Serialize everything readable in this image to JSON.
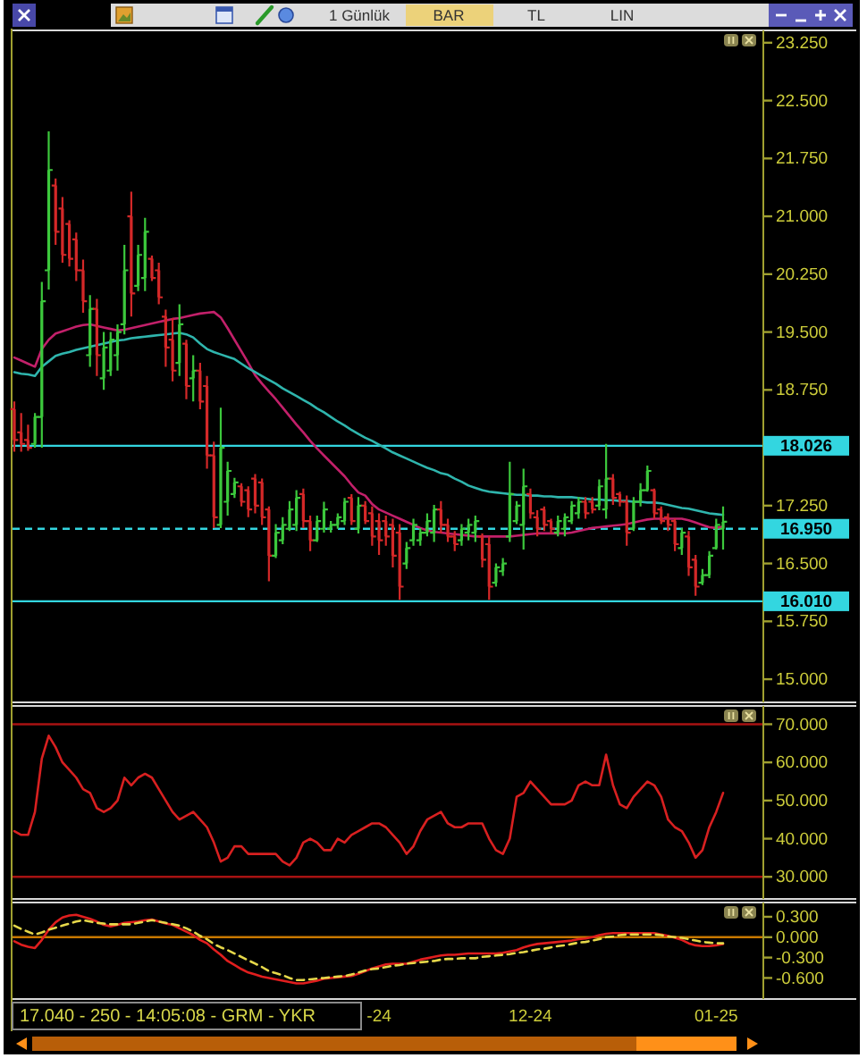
{
  "chart_data": [
    {
      "type": "candlestick",
      "categories": [
        null,
        null,
        null,
        null,
        null,
        null,
        null,
        null,
        null,
        null,
        null,
        null,
        null,
        null,
        null,
        null,
        null,
        null,
        null,
        null,
        null,
        null,
        null,
        null,
        null,
        null,
        null,
        null,
        null,
        null,
        null,
        null,
        null,
        null,
        null,
        null,
        null,
        null,
        null,
        null,
        null,
        null,
        null,
        null,
        null,
        null,
        null,
        null,
        null,
        null,
        null,
        null,
        null,
        null,
        null,
        null,
        null,
        null,
        null,
        null,
        null,
        null,
        null,
        null,
        null,
        null,
        null,
        null,
        null,
        null,
        null,
        null,
        null,
        null,
        null,
        null,
        null,
        null,
        null,
        null,
        null,
        null,
        null,
        null,
        null,
        null,
        null,
        null,
        null,
        null,
        null,
        null,
        null,
        null,
        null,
        null,
        null,
        null,
        null,
        null,
        null,
        null,
        null,
        null
      ],
      "ohlc": [
        [
          18.5,
          18.6,
          17.95,
          18.1
        ],
        [
          18.2,
          18.45,
          17.95,
          18.05
        ],
        [
          18.1,
          18.3,
          17.96,
          18.0
        ],
        [
          18.05,
          18.45,
          18.0,
          18.4
        ],
        [
          18.4,
          20.15,
          18.0,
          19.9
        ],
        [
          20.3,
          22.1,
          20.05,
          21.6
        ],
        [
          21.4,
          21.49,
          20.63,
          20.8
        ],
        [
          21.1,
          21.25,
          20.4,
          20.5
        ],
        [
          20.9,
          20.95,
          20.35,
          20.45
        ],
        [
          20.7,
          20.79,
          20.16,
          20.3
        ],
        [
          20.3,
          20.44,
          19.75,
          19.9
        ],
        [
          19.2,
          19.98,
          19.05,
          19.8
        ],
        [
          19.8,
          19.93,
          18.93,
          19.2
        ],
        [
          18.9,
          19.5,
          18.75,
          19.3
        ],
        [
          19.0,
          19.5,
          18.93,
          19.4
        ],
        [
          19.2,
          19.6,
          19.0,
          19.5
        ],
        [
          19.6,
          20.63,
          19.47,
          20.3
        ],
        [
          21.0,
          21.32,
          19.7,
          20.0
        ],
        [
          20.1,
          20.63,
          20.03,
          20.5
        ],
        [
          20.2,
          20.98,
          20.03,
          20.8
        ],
        [
          20.45,
          20.49,
          20.16,
          20.2
        ],
        [
          20.3,
          20.4,
          19.86,
          19.95
        ],
        [
          19.7,
          19.79,
          19.05,
          19.3
        ],
        [
          19.4,
          19.68,
          18.86,
          19.0
        ],
        [
          19.1,
          19.86,
          18.93,
          19.6
        ],
        [
          19.35,
          19.4,
          18.63,
          18.8
        ],
        [
          18.9,
          19.2,
          18.6,
          19.0
        ],
        [
          19.0,
          19.1,
          18.5,
          18.6
        ],
        [
          18.8,
          18.93,
          17.73,
          17.9
        ],
        [
          17.9,
          18.08,
          16.96,
          17.1
        ],
        [
          17.0,
          18.52,
          16.96,
          18.0
        ],
        [
          17.3,
          17.82,
          17.12,
          17.7
        ],
        [
          17.4,
          17.61,
          17.35,
          17.55
        ],
        [
          17.5,
          17.54,
          17.24,
          17.3
        ],
        [
          17.45,
          17.5,
          17.1,
          17.2
        ],
        [
          17.6,
          17.66,
          17.15,
          17.25
        ],
        [
          17.55,
          17.6,
          17.0,
          17.1
        ],
        [
          17.2,
          17.24,
          16.27,
          16.6
        ],
        [
          16.6,
          17.01,
          16.57,
          16.9
        ],
        [
          16.8,
          17.1,
          16.75,
          17.0
        ],
        [
          16.95,
          17.31,
          16.92,
          17.2
        ],
        [
          17.0,
          17.45,
          16.92,
          17.35
        ],
        [
          17.4,
          17.47,
          16.96,
          17.05
        ],
        [
          17.05,
          17.12,
          16.66,
          16.8
        ],
        [
          16.8,
          17.12,
          16.78,
          17.05
        ],
        [
          16.95,
          17.3,
          16.9,
          17.2
        ],
        [
          16.95,
          17.05,
          16.9,
          17.0
        ],
        [
          17.0,
          17.15,
          16.95,
          17.1
        ],
        [
          17.05,
          17.35,
          17.0,
          17.3
        ],
        [
          17.35,
          17.4,
          17.0,
          17.05
        ],
        [
          16.95,
          17.36,
          16.89,
          17.25
        ],
        [
          17.25,
          17.31,
          17.01,
          17.05
        ],
        [
          17.15,
          17.24,
          16.73,
          16.85
        ],
        [
          17.05,
          17.15,
          16.61,
          16.8
        ],
        [
          17.05,
          17.12,
          16.73,
          16.85
        ],
        [
          17.0,
          17.08,
          16.45,
          16.6
        ],
        [
          16.9,
          17.01,
          16.03,
          16.2
        ],
        [
          16.5,
          16.78,
          16.43,
          16.7
        ],
        [
          16.8,
          17.08,
          16.73,
          17.0
        ],
        [
          16.8,
          16.96,
          16.73,
          16.9
        ],
        [
          16.9,
          17.15,
          16.85,
          17.05
        ],
        [
          16.9,
          17.26,
          16.78,
          17.2
        ],
        [
          17.2,
          17.31,
          16.89,
          17.0
        ],
        [
          17.0,
          17.08,
          16.78,
          16.85
        ],
        [
          16.85,
          16.92,
          16.66,
          16.75
        ],
        [
          16.8,
          17.01,
          16.73,
          16.95
        ],
        [
          16.9,
          17.08,
          16.8,
          17.0
        ],
        [
          16.9,
          17.12,
          16.78,
          17.05
        ],
        [
          16.85,
          16.89,
          16.45,
          16.55
        ],
        [
          16.75,
          16.85,
          16.03,
          16.2
        ],
        [
          16.25,
          16.5,
          16.2,
          16.45
        ],
        [
          16.4,
          16.57,
          16.34,
          16.5
        ],
        [
          16.85,
          17.82,
          16.78,
          17.4
        ],
        [
          17.05,
          17.31,
          17.01,
          17.25
        ],
        [
          17.0,
          17.73,
          16.68,
          17.5
        ],
        [
          17.4,
          17.47,
          17.08,
          17.15
        ],
        [
          17.1,
          17.19,
          16.85,
          16.95
        ],
        [
          17.2,
          17.24,
          16.92,
          17.0
        ],
        [
          17.05,
          17.08,
          16.89,
          16.95
        ],
        [
          16.9,
          17.12,
          16.85,
          17.05
        ],
        [
          16.95,
          17.15,
          16.85,
          17.1
        ],
        [
          17.05,
          17.31,
          17.01,
          17.25
        ],
        [
          17.15,
          17.36,
          17.08,
          17.3
        ],
        [
          17.3,
          17.36,
          17.08,
          17.15
        ],
        [
          17.3,
          17.36,
          17.15,
          17.2
        ],
        [
          17.25,
          17.59,
          17.19,
          17.5
        ],
        [
          17.2,
          18.05,
          17.08,
          17.6
        ],
        [
          17.6,
          17.66,
          17.26,
          17.35
        ],
        [
          17.4,
          17.43,
          17.24,
          17.3
        ],
        [
          17.3,
          17.38,
          16.73,
          16.9
        ],
        [
          16.95,
          17.36,
          16.92,
          17.3
        ],
        [
          17.3,
          17.54,
          17.24,
          17.45
        ],
        [
          17.45,
          17.77,
          17.43,
          17.7
        ],
        [
          17.45,
          17.47,
          17.08,
          17.15
        ],
        [
          17.2,
          17.24,
          17.01,
          17.05
        ],
        [
          17.1,
          17.15,
          16.92,
          17.0
        ],
        [
          17.05,
          17.08,
          16.66,
          16.75
        ],
        [
          16.7,
          16.96,
          16.61,
          16.9
        ],
        [
          16.85,
          16.92,
          16.34,
          16.45
        ],
        [
          16.55,
          16.61,
          16.08,
          16.2
        ],
        [
          16.25,
          16.43,
          16.22,
          16.35
        ],
        [
          16.35,
          16.66,
          16.31,
          16.6
        ],
        [
          16.7,
          17.08,
          16.68,
          17.0
        ],
        [
          16.95,
          17.24,
          16.68,
          17.04
        ]
      ],
      "colors": [
        "#d42828",
        "#d42828",
        "#d42828",
        "#3cc83c",
        "#3cc83c",
        "#3cc83c",
        "#d42828",
        "#d42828",
        "#d42828",
        "#d42828",
        "#d42828",
        "#3cc83c",
        "#d42828",
        "#3cc83c",
        "#3cc83c",
        "#3cc83c",
        "#3cc83c",
        "#d42828",
        "#3cc83c",
        "#3cc83c",
        "#d42828",
        "#d42828",
        "#d42828",
        "#d42828",
        "#3cc83c",
        "#d42828",
        "#3cc83c",
        "#d42828",
        "#d42828",
        "#d42828",
        "#3cc83c",
        "#3cc83c",
        "#3cc83c",
        "#d42828",
        "#d42828",
        "#d42828",
        "#d42828",
        "#d42828",
        "#3cc83c",
        "#3cc83c",
        "#3cc83c",
        "#3cc83c",
        "#d42828",
        "#d42828",
        "#3cc83c",
        "#3cc83c",
        "#3cc83c",
        "#3cc83c",
        "#3cc83c",
        "#d42828",
        "#3cc83c",
        "#d42828",
        "#d42828",
        "#d42828",
        "#d42828",
        "#d42828",
        "#d42828",
        "#3cc83c",
        "#3cc83c",
        "#3cc83c",
        "#3cc83c",
        "#3cc83c",
        "#d42828",
        "#d42828",
        "#d42828",
        "#3cc83c",
        "#3cc83c",
        "#3cc83c",
        "#d42828",
        "#d42828",
        "#3cc83c",
        "#3cc83c",
        "#3cc83c",
        "#3cc83c",
        "#3cc83c",
        "#d42828",
        "#d42828",
        "#d42828",
        "#d42828",
        "#3cc83c",
        "#3cc83c",
        "#3cc83c",
        "#3cc83c",
        "#d42828",
        "#d42828",
        "#3cc83c",
        "#3cc83c",
        "#d42828",
        "#d42828",
        "#d42828",
        "#3cc83c",
        "#3cc83c",
        "#3cc83c",
        "#d42828",
        "#d42828",
        "#d42828",
        "#d42828",
        "#3cc83c",
        "#d42828",
        "#d42828",
        "#3cc83c",
        "#3cc83c",
        "#3cc83c",
        "#3cc83c"
      ],
      "series": [
        {
          "type": "line",
          "color": "#c2206a",
          "values": [
            19.17,
            19.13,
            19.09,
            19.05,
            19.28,
            19.4,
            19.48,
            19.51,
            19.54,
            19.57,
            19.59,
            19.6,
            19.58,
            19.56,
            19.54,
            19.52,
            19.53,
            19.55,
            19.57,
            19.59,
            19.61,
            19.63,
            19.65,
            19.67,
            19.68,
            19.7,
            19.72,
            19.74,
            19.75,
            19.76,
            19.69,
            19.55,
            19.4,
            19.25,
            19.1,
            18.94,
            18.83,
            18.73,
            18.63,
            18.52,
            18.41,
            18.3,
            18.2,
            18.09,
            17.99,
            17.9,
            17.81,
            17.72,
            17.63,
            17.52,
            17.42,
            17.38,
            17.27,
            17.2,
            17.16,
            17.12,
            17.08,
            17.04,
            17.0,
            16.96,
            16.93,
            16.91,
            16.9,
            16.89,
            16.88,
            16.87,
            16.86,
            16.85,
            16.85,
            16.85,
            16.85,
            16.85,
            16.85,
            16.86,
            16.87,
            16.88,
            16.89,
            16.89,
            16.89,
            16.89,
            16.89,
            16.9,
            16.92,
            16.94,
            16.96,
            16.97,
            16.98,
            16.99,
            17.0,
            17.01,
            17.03,
            17.05,
            17.07,
            17.08,
            17.08,
            17.08,
            17.08,
            17.08,
            17.06,
            17.03,
            17.0,
            16.97,
            16.96,
            16.98
          ]
        },
        {
          "type": "line",
          "color": "#2fb5ad",
          "values": [
            18.98,
            18.96,
            18.95,
            18.93,
            19.05,
            19.12,
            19.19,
            19.22,
            19.24,
            19.27,
            19.29,
            19.31,
            19.33,
            19.35,
            19.37,
            19.39,
            19.4,
            19.42,
            19.43,
            19.44,
            19.45,
            19.46,
            19.47,
            19.48,
            19.49,
            19.47,
            19.43,
            19.35,
            19.28,
            19.24,
            19.21,
            19.18,
            19.15,
            19.09,
            19.03,
            18.98,
            18.93,
            18.88,
            18.83,
            18.77,
            18.72,
            18.67,
            18.62,
            18.57,
            18.51,
            18.46,
            18.4,
            18.34,
            18.29,
            18.23,
            18.18,
            18.13,
            18.09,
            18.04,
            17.99,
            17.94,
            17.9,
            17.86,
            17.82,
            17.78,
            17.74,
            17.71,
            17.67,
            17.65,
            17.6,
            17.56,
            17.51,
            17.48,
            17.45,
            17.43,
            17.42,
            17.41,
            17.4,
            17.39,
            17.39,
            17.38,
            17.38,
            17.37,
            17.37,
            17.36,
            17.36,
            17.36,
            17.35,
            17.34,
            17.33,
            17.33,
            17.32,
            17.32,
            17.31,
            17.31,
            17.3,
            17.3,
            17.29,
            17.29,
            17.28,
            17.26,
            17.24,
            17.22,
            17.21,
            17.19,
            17.17,
            17.15,
            17.14,
            17.13
          ]
        }
      ],
      "ylim": [
        14.7,
        23.41
      ],
      "yticks": [
        {
          "value": 23.25,
          "label": "23.250"
        },
        {
          "value": 22.5,
          "label": "22.500"
        },
        {
          "value": 21.75,
          "label": "21.750"
        },
        {
          "value": 21,
          "label": "21.000"
        },
        {
          "value": 20.25,
          "label": "20.250"
        },
        {
          "value": 19.5,
          "label": "19.500"
        },
        {
          "value": 18.75,
          "label": "18.750"
        },
        {
          "value": 17.25,
          "label": "17.250"
        },
        {
          "value": 16.5,
          "label": "16.500"
        },
        {
          "value": 15.75,
          "label": "15.750"
        },
        {
          "value": 15,
          "label": "15.000"
        }
      ],
      "ref_lines": [
        {
          "axis": "y",
          "value": 18.026,
          "label": "18.026",
          "color": "#33d6e0"
        },
        {
          "axis": "y",
          "value": 16.95,
          "label": "16.950",
          "color": "#33d6e0",
          "line_style": "dashed"
        },
        {
          "axis": "y",
          "value": 16.01,
          "label": "16.010",
          "color": "#33d6e0"
        }
      ],
      "tick_labels": "y",
      "annotations": [
        "1 Günlük",
        "BAR",
        "TL",
        "LIN"
      ]
    },
    {
      "type": "line",
      "categories": [
        null,
        null,
        null,
        null,
        null,
        null,
        null,
        null,
        null,
        null,
        null,
        null,
        null,
        null,
        null,
        null,
        null,
        null,
        null,
        null,
        null,
        null,
        null,
        null,
        null,
        null,
        null,
        null,
        null,
        null,
        null,
        null,
        null,
        null,
        null,
        null,
        null,
        null,
        null,
        null,
        null,
        null,
        null,
        null,
        null,
        null,
        null,
        null,
        null,
        null,
        null,
        null,
        null,
        null,
        null,
        null,
        null,
        null,
        null,
        null,
        null,
        null,
        null,
        null,
        null,
        null,
        null,
        null,
        null,
        null,
        null,
        null,
        null,
        null,
        null,
        null,
        null,
        null,
        null,
        null,
        null,
        null,
        null,
        null,
        null,
        null,
        null,
        null,
        null,
        null,
        null,
        null,
        null,
        null,
        null,
        null,
        null,
        null,
        null,
        null,
        null,
        null,
        null,
        null
      ],
      "series": [
        {
          "color": "#d82020",
          "values": [
            42,
            41,
            41,
            47,
            61,
            67,
            64,
            60,
            58,
            56,
            53,
            52,
            48,
            47,
            48,
            50,
            56,
            54,
            56,
            57,
            56,
            53,
            50,
            47,
            45,
            46,
            47,
            45,
            43,
            39,
            34,
            35,
            38,
            38,
            36,
            36,
            36,
            36,
            36,
            34,
            33,
            35,
            39,
            40,
            39,
            37,
            37,
            40,
            39,
            41,
            42,
            43,
            44,
            44,
            43,
            41,
            39,
            36,
            38,
            42,
            45,
            46,
            47,
            44,
            43,
            43,
            44,
            44,
            44,
            40,
            37,
            36,
            40,
            51,
            52,
            55,
            53,
            51,
            49,
            49,
            49,
            50,
            54,
            55,
            54,
            54,
            62,
            54,
            49,
            48,
            51,
            53,
            55,
            54,
            51,
            45,
            43,
            42,
            39,
            35,
            37,
            43,
            47,
            52
          ]
        }
      ],
      "ylim": [
        24.2,
        74.8
      ],
      "yticks": [
        {
          "value": 70,
          "label": "70.000"
        },
        {
          "value": 60,
          "label": "60.000"
        },
        {
          "value": 50,
          "label": "50.000"
        },
        {
          "value": 40,
          "label": "40.000"
        },
        {
          "value": 30,
          "label": "30.000"
        }
      ],
      "ref_lines": [
        {
          "axis": "y",
          "value": 70,
          "color": "#a81212"
        },
        {
          "axis": "y",
          "value": 30,
          "color": "#a81212"
        }
      ],
      "tick_labels": "y"
    },
    {
      "type": "line",
      "categories": [
        null,
        null,
        null,
        null,
        null,
        null,
        null,
        null,
        null,
        null,
        null,
        null,
        null,
        null,
        null,
        null,
        null,
        null,
        null,
        null,
        null,
        null,
        null,
        null,
        null,
        null,
        null,
        null,
        null,
        null,
        null,
        null,
        null,
        null,
        null,
        null,
        null,
        null,
        null,
        null,
        null,
        null,
        null,
        null,
        null,
        null,
        null,
        null,
        null,
        null,
        null,
        null,
        null,
        "-24",
        null,
        null,
        null,
        null,
        null,
        null,
        null,
        null,
        null,
        null,
        null,
        null,
        null,
        null,
        null,
        null,
        null,
        null,
        null,
        null,
        null,
        "12-24",
        null,
        null,
        null,
        null,
        null,
        null,
        null,
        null,
        null,
        null,
        null,
        null,
        null,
        null,
        null,
        null,
        null,
        null,
        null,
        null,
        null,
        null,
        null,
        null,
        null,
        null,
        "01-25",
        null
      ],
      "series": [
        {
          "color": "#e01e1e",
          "values": [
            -0.06,
            -0.11,
            -0.14,
            -0.16,
            -0.04,
            0.11,
            0.22,
            0.29,
            0.32,
            0.33,
            0.3,
            0.27,
            0.23,
            0.18,
            0.16,
            0.18,
            0.21,
            0.22,
            0.23,
            0.25,
            0.26,
            0.23,
            0.2,
            0.18,
            0.13,
            0.08,
            0.03,
            -0.04,
            -0.09,
            -0.18,
            -0.26,
            -0.35,
            -0.41,
            -0.47,
            -0.52,
            -0.55,
            -0.58,
            -0.6,
            -0.62,
            -0.64,
            -0.66,
            -0.68,
            -0.68,
            -0.66,
            -0.64,
            -0.61,
            -0.6,
            -0.59,
            -0.58,
            -0.57,
            -0.54,
            -0.5,
            -0.46,
            -0.43,
            -0.4,
            -0.39,
            -0.39,
            -0.39,
            -0.36,
            -0.33,
            -0.31,
            -0.29,
            -0.27,
            -0.26,
            -0.26,
            -0.25,
            -0.24,
            -0.24,
            -0.24,
            -0.24,
            -0.24,
            -0.23,
            -0.21,
            -0.19,
            -0.15,
            -0.12,
            -0.1,
            -0.09,
            -0.08,
            -0.07,
            -0.06,
            -0.05,
            -0.03,
            -0.02,
            0.0,
            0.03,
            0.05,
            0.06,
            0.06,
            0.06,
            0.06,
            0.06,
            0.06,
            0.06,
            0.04,
            0.02,
            -0.01,
            -0.04,
            -0.09,
            -0.12,
            -0.13,
            -0.13,
            -0.12,
            -0.1
          ]
        },
        {
          "color": "#e6d84a",
          "line_style": "dashed",
          "values": [
            0.17,
            0.12,
            0.08,
            0.04,
            0.07,
            0.11,
            0.14,
            0.17,
            0.2,
            0.23,
            0.25,
            0.23,
            0.21,
            0.2,
            0.19,
            0.19,
            0.19,
            0.19,
            0.21,
            0.23,
            0.25,
            0.23,
            0.21,
            0.19,
            0.17,
            0.13,
            0.08,
            0.02,
            -0.03,
            -0.1,
            -0.15,
            -0.19,
            -0.24,
            -0.29,
            -0.34,
            -0.39,
            -0.44,
            -0.5,
            -0.53,
            -0.56,
            -0.6,
            -0.63,
            -0.63,
            -0.62,
            -0.61,
            -0.6,
            -0.59,
            -0.58,
            -0.57,
            -0.55,
            -0.52,
            -0.49,
            -0.47,
            -0.46,
            -0.44,
            -0.42,
            -0.41,
            -0.39,
            -0.38,
            -0.37,
            -0.36,
            -0.35,
            -0.33,
            -0.32,
            -0.32,
            -0.31,
            -0.31,
            -0.31,
            -0.29,
            -0.28,
            -0.27,
            -0.26,
            -0.25,
            -0.23,
            -0.22,
            -0.2,
            -0.18,
            -0.17,
            -0.15,
            -0.13,
            -0.12,
            -0.1,
            -0.08,
            -0.07,
            -0.05,
            -0.03,
            0.0,
            0.01,
            0.03,
            0.04,
            0.04,
            0.04,
            0.04,
            0.04,
            0.03,
            0.01,
            0.0,
            -0.01,
            -0.03,
            -0.05,
            -0.07,
            -0.08,
            -0.09,
            -0.09
          ]
        }
      ],
      "ylim": [
        -0.91,
        0.51
      ],
      "yticks": [
        {
          "value": 0.3,
          "label": "0.300"
        },
        {
          "value": 0,
          "label": "0.000"
        },
        {
          "value": -0.3,
          "label": "-0.300"
        },
        {
          "value": -0.6,
          "label": "-0.600"
        }
      ],
      "ref_lines": [
        {
          "axis": "y",
          "value": 0,
          "color": "#c87800"
        }
      ],
      "annotations": [
        "17.040 - 250 - 14:05:08 - GRM - YKR"
      ]
    }
  ]
}
